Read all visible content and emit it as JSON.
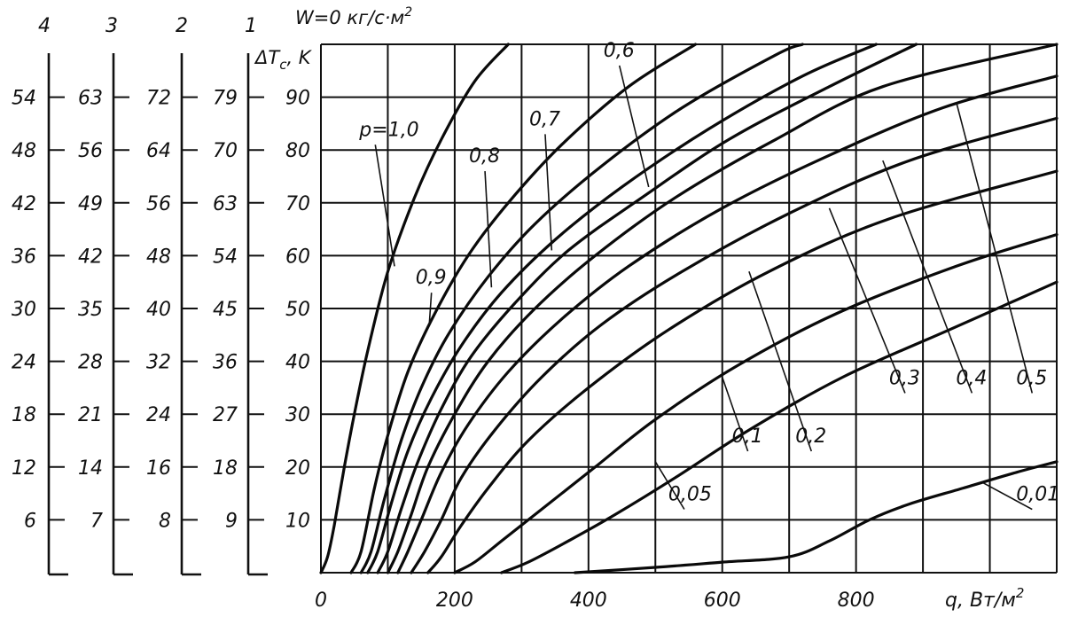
{
  "chart_data": {
    "type": "line",
    "title": "W=0 кг/с·м",
    "title_sup": "2",
    "xlabel": "q, Вт/м",
    "xlabel_sup": "2",
    "ylabel": "ΔT",
    "ylabel_sub": "c",
    "ylabel_unit": ", K",
    "xlim": [
      0,
      1100
    ],
    "ylim": [
      0,
      100
    ],
    "grid": true,
    "x_ticks": [
      0,
      100,
      200,
      300,
      400,
      500,
      600,
      700,
      800,
      900,
      1000,
      1100
    ],
    "x_tick_labels": [
      {
        "x": 0,
        "label": "0"
      },
      {
        "x": 200,
        "label": "200"
      },
      {
        "x": 400,
        "label": "400"
      },
      {
        "x": 600,
        "label": "600"
      },
      {
        "x": 800,
        "label": "800"
      }
    ],
    "y_ticks": [
      {
        "y": 10,
        "label": "10"
      },
      {
        "y": 20,
        "label": "20"
      },
      {
        "y": 30,
        "label": "30"
      },
      {
        "y": 40,
        "label": "40"
      },
      {
        "y": 50,
        "label": "50"
      },
      {
        "y": 60,
        "label": "60"
      },
      {
        "y": 70,
        "label": "70"
      },
      {
        "y": 80,
        "label": "80"
      },
      {
        "y": 90,
        "label": "90"
      }
    ],
    "auxiliary_scales": [
      {
        "name": "1",
        "labels": [
          "9",
          "18",
          "27",
          "36",
          "45",
          "54",
          "63",
          "70",
          "79"
        ]
      },
      {
        "name": "2",
        "labels": [
          "8",
          "16",
          "24",
          "32",
          "40",
          "48",
          "56",
          "64",
          "72"
        ]
      },
      {
        "name": "3",
        "labels": [
          "7",
          "14",
          "21",
          "28",
          "35",
          "42",
          "49",
          "56",
          "63"
        ]
      },
      {
        "name": "4",
        "labels": [
          "6",
          "12",
          "18",
          "24",
          "30",
          "36",
          "42",
          "48",
          "54"
        ]
      }
    ],
    "series": [
      {
        "name": "p=1,0",
        "points": [
          [
            0,
            0
          ],
          [
            10,
            3
          ],
          [
            20,
            9
          ],
          [
            35,
            20
          ],
          [
            50,
            30
          ],
          [
            70,
            42
          ],
          [
            100,
            57
          ],
          [
            140,
            71
          ],
          [
            180,
            82
          ],
          [
            230,
            93
          ],
          [
            280,
            100
          ]
        ]
      },
      {
        "name": "0,9",
        "points": [
          [
            45,
            0
          ],
          [
            60,
            4
          ],
          [
            80,
            16
          ],
          [
            100,
            26
          ],
          [
            130,
            38
          ],
          [
            170,
            49
          ],
          [
            220,
            60
          ],
          [
            280,
            70
          ],
          [
            360,
            81
          ],
          [
            460,
            92
          ],
          [
            560,
            100
          ]
        ]
      },
      {
        "name": "0,8",
        "points": [
          [
            60,
            0
          ],
          [
            75,
            4
          ],
          [
            95,
            14
          ],
          [
            120,
            25
          ],
          [
            150,
            35
          ],
          [
            190,
            45
          ],
          [
            250,
            56
          ],
          [
            320,
            66
          ],
          [
            420,
            77
          ],
          [
            540,
            88
          ],
          [
            680,
            98
          ],
          [
            720,
            100
          ]
        ]
      },
      {
        "name": "0,7",
        "points": [
          [
            70,
            0
          ],
          [
            85,
            4
          ],
          [
            105,
            13
          ],
          [
            130,
            23
          ],
          [
            165,
            33
          ],
          [
            210,
            43
          ],
          [
            270,
            53
          ],
          [
            350,
            63
          ],
          [
            450,
            73
          ],
          [
            580,
            84
          ],
          [
            720,
            94
          ],
          [
            830,
            100
          ]
        ]
      },
      {
        "name": "0,6",
        "points": [
          [
            85,
            0
          ],
          [
            100,
            4
          ],
          [
            120,
            12
          ],
          [
            145,
            21
          ],
          [
            180,
            31
          ],
          [
            225,
            41
          ],
          [
            290,
            51
          ],
          [
            370,
            61
          ],
          [
            480,
            71
          ],
          [
            610,
            82
          ],
          [
            760,
            92
          ],
          [
            890,
            100
          ]
        ]
      },
      {
        "name": "0,5",
        "points": [
          [
            100,
            0
          ],
          [
            115,
            4
          ],
          [
            135,
            11
          ],
          [
            160,
            20
          ],
          [
            200,
            30
          ],
          [
            250,
            40
          ],
          [
            320,
            50
          ],
          [
            410,
            60
          ],
          [
            530,
            71
          ],
          [
            680,
            82
          ],
          [
            840,
            92
          ],
          [
            1100,
            100
          ]
        ]
      },
      {
        "name": "0,4",
        "points": [
          [
            115,
            0
          ],
          [
            130,
            4
          ],
          [
            150,
            10
          ],
          [
            180,
            19
          ],
          [
            220,
            28
          ],
          [
            280,
            38
          ],
          [
            360,
            48
          ],
          [
            460,
            58
          ],
          [
            600,
            69
          ],
          [
            760,
            79
          ],
          [
            930,
            88
          ],
          [
            1100,
            94
          ]
        ]
      },
      {
        "name": "0,3",
        "points": [
          [
            135,
            0
          ],
          [
            155,
            4
          ],
          [
            180,
            10
          ],
          [
            210,
            18
          ],
          [
            260,
            27
          ],
          [
            330,
            37
          ],
          [
            420,
            47
          ],
          [
            540,
            57
          ],
          [
            700,
            68
          ],
          [
            880,
            78
          ],
          [
            1100,
            86
          ]
        ]
      },
      {
        "name": "0,2",
        "points": [
          [
            160,
            0
          ],
          [
            180,
            3
          ],
          [
            210,
            9
          ],
          [
            250,
            16
          ],
          [
            310,
            25
          ],
          [
            400,
            35
          ],
          [
            520,
            46
          ],
          [
            670,
            57
          ],
          [
            850,
            67
          ],
          [
            1100,
            76
          ]
        ]
      },
      {
        "name": "0,1",
        "points": [
          [
            200,
            0
          ],
          [
            230,
            2
          ],
          [
            270,
            6
          ],
          [
            330,
            12
          ],
          [
            410,
            20
          ],
          [
            500,
            29
          ],
          [
            620,
            39
          ],
          [
            770,
            49
          ],
          [
            950,
            58
          ],
          [
            1100,
            64
          ]
        ]
      },
      {
        "name": "0,05",
        "points": [
          [
            270,
            0
          ],
          [
            310,
            2
          ],
          [
            370,
            6
          ],
          [
            440,
            11
          ],
          [
            530,
            18
          ],
          [
            640,
            27
          ],
          [
            780,
            37
          ],
          [
            940,
            46
          ],
          [
            1100,
            55
          ]
        ]
      },
      {
        "name": "0,01",
        "points": [
          [
            380,
            0
          ],
          [
            500,
            1
          ],
          [
            600,
            2
          ],
          [
            700,
            3
          ],
          [
            760,
            6
          ],
          [
            820,
            10
          ],
          [
            880,
            13
          ],
          [
            960,
            16
          ],
          [
            1040,
            19
          ],
          [
            1100,
            21
          ]
        ]
      }
    ],
    "series_labels": [
      {
        "text": "p=1,0",
        "series": "p=1,0",
        "lx": 68,
        "ly": 82,
        "ax": 110,
        "ay": 58
      },
      {
        "text": "0,9",
        "series": "0,9",
        "lx": 152,
        "ly": 54,
        "ax": 162,
        "ay": 47
      },
      {
        "text": "0,8",
        "series": "0,8",
        "lx": 232,
        "ly": 77,
        "ax": 255,
        "ay": 54
      },
      {
        "text": "0,7",
        "series": "0,7",
        "lx": 322,
        "ly": 84,
        "ax": 345,
        "ay": 61
      },
      {
        "text": "0,6",
        "series": "0,6",
        "lx": 433,
        "ly": 97,
        "ax": 490,
        "ay": 73
      },
      {
        "text": "0,5",
        "series": "0,5",
        "lx": 1050,
        "ly": 35,
        "ax": 950,
        "ay": 89
      },
      {
        "text": "0,4",
        "series": "0,4",
        "lx": 960,
        "ly": 35,
        "ax": 840,
        "ay": 78
      },
      {
        "text": "0,3",
        "series": "0,3",
        "lx": 860,
        "ly": 35,
        "ax": 760,
        "ay": 69
      },
      {
        "text": "0,2",
        "series": "0,2",
        "lx": 720,
        "ly": 24,
        "ax": 640,
        "ay": 57
      },
      {
        "text": "0,1",
        "series": "0,1",
        "lx": 625,
        "ly": 24,
        "ax": 600,
        "ay": 37
      },
      {
        "text": "0,05",
        "series": "0,05",
        "lx": 530,
        "ly": 13,
        "ax": 500,
        "ay": 21
      },
      {
        "text": "0,01",
        "series": "0,01",
        "lx": 1050,
        "ly": 13,
        "ax": 990,
        "ay": 17
      }
    ]
  }
}
